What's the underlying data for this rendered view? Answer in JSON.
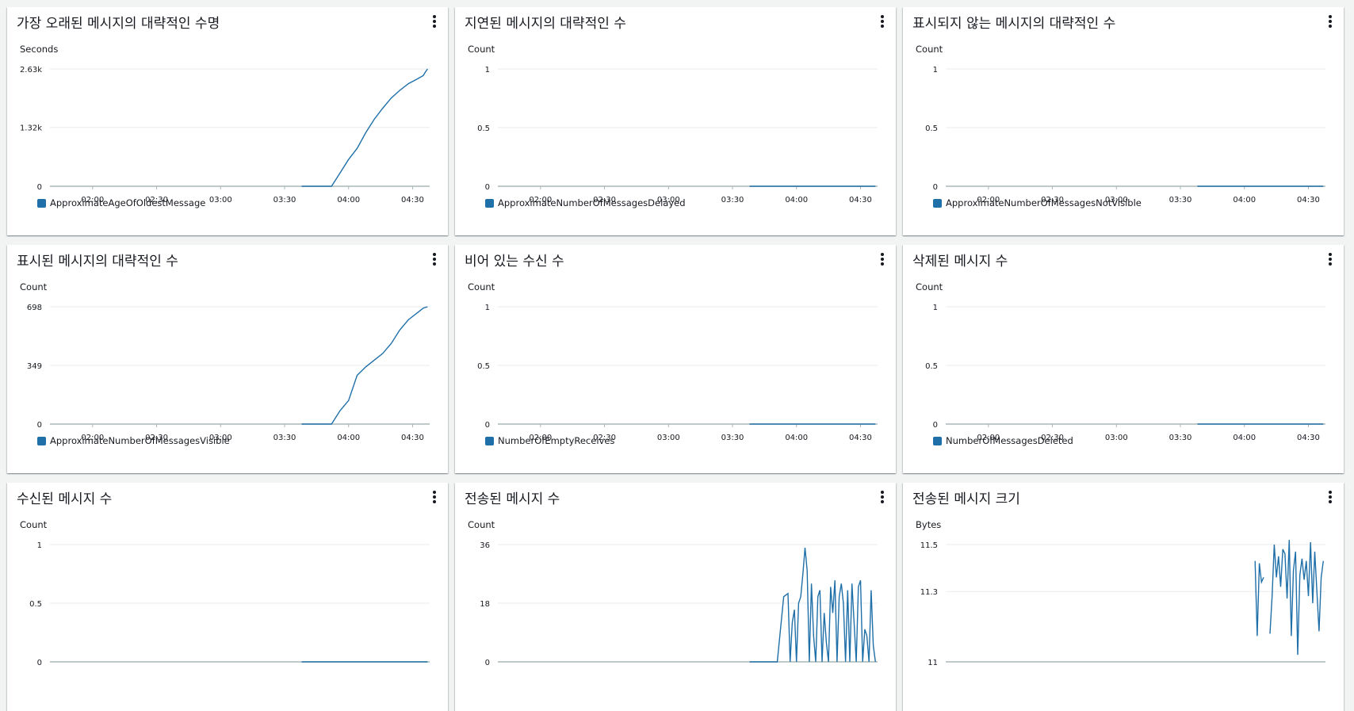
{
  "theme": {
    "series_color": "#1f6fa8",
    "grid_color": "#e9ebed",
    "axis_color": "#aab7b8"
  },
  "panels": [
    {
      "title": "가장 오래된 메시지의 대략적인 수명",
      "unit": "Seconds",
      "legend": "ApproximateAgeOfOldestMessage",
      "menu_icon": "more-vertical-icon"
    },
    {
      "title": "지연된 메시지의 대략적인 수",
      "unit": "Count",
      "legend": "ApproximateNumberOfMessagesDelayed",
      "menu_icon": "more-vertical-icon"
    },
    {
      "title": "표시되지 않는 메시지의 대략적인 수",
      "unit": "Count",
      "legend": "ApproximateNumberOfMessagesNotVisible",
      "menu_icon": "more-vertical-icon"
    },
    {
      "title": "표시된 메시지의 대략적인 수",
      "unit": "Count",
      "legend": "ApproximateNumberOfMessagesVisible",
      "menu_icon": "more-vertical-icon"
    },
    {
      "title": "비어 있는 수신 수",
      "unit": "Count",
      "legend": "NumberOfEmptyReceives",
      "menu_icon": "more-vertical-icon"
    },
    {
      "title": "삭제된 메시지 수",
      "unit": "Count",
      "legend": "NumberOfMessagesDeleted",
      "menu_icon": "more-vertical-icon"
    },
    {
      "title": "수신된 메시지 수",
      "unit": "Count",
      "legend": "",
      "menu_icon": "more-vertical-icon"
    },
    {
      "title": "전송된 메시지 수",
      "unit": "Count",
      "legend": "",
      "menu_icon": "more-vertical-icon"
    },
    {
      "title": "전송된 메시지 크기",
      "unit": "Bytes",
      "legend": "",
      "menu_icon": "more-vertical-icon"
    }
  ],
  "chart_data": [
    {
      "type": "line",
      "title": "가장 오래된 메시지의 대략적인 수명",
      "ylabel": "Seconds",
      "x_ticks": [
        "02:00",
        "02:30",
        "03:00",
        "03:30",
        "04:00",
        "04:30"
      ],
      "y_ticks": [
        "0",
        "1.32k",
        "2.63k"
      ],
      "ylim": [
        0,
        2630
      ],
      "xlim": [
        "01:40",
        "04:38"
      ],
      "series": [
        {
          "name": "ApproximateAgeOfOldestMessage",
          "x": [
            "03:38",
            "03:52",
            "03:56",
            "04:00",
            "04:04",
            "04:08",
            "04:12",
            "04:16",
            "04:20",
            "04:24",
            "04:28",
            "04:32",
            "04:35",
            "04:36",
            "04:37"
          ],
          "y": [
            0,
            0,
            300,
            600,
            850,
            1200,
            1500,
            1750,
            1980,
            2150,
            2300,
            2400,
            2480,
            2560,
            2630
          ]
        }
      ]
    },
    {
      "type": "line",
      "title": "지연된 메시지의 대략적인 수",
      "ylabel": "Count",
      "x_ticks": [
        "02:00",
        "02:30",
        "03:00",
        "03:30",
        "04:00",
        "04:30"
      ],
      "y_ticks": [
        "0",
        "0.5",
        "1"
      ],
      "ylim": [
        0,
        1
      ],
      "xlim": [
        "01:40",
        "04:38"
      ],
      "series": [
        {
          "name": "ApproximateNumberOfMessagesDelayed",
          "x": [
            "03:38",
            "04:37"
          ],
          "y": [
            0,
            0
          ]
        }
      ]
    },
    {
      "type": "line",
      "title": "표시되지 않는 메시지의 대략적인 수",
      "ylabel": "Count",
      "x_ticks": [
        "02:00",
        "02:30",
        "03:00",
        "03:30",
        "04:00",
        "04:30"
      ],
      "y_ticks": [
        "0",
        "0.5",
        "1"
      ],
      "ylim": [
        0,
        1
      ],
      "xlim": [
        "01:40",
        "04:38"
      ],
      "series": [
        {
          "name": "ApproximateNumberOfMessagesNotVisible",
          "x": [
            "03:38",
            "04:37"
          ],
          "y": [
            0,
            0
          ]
        }
      ]
    },
    {
      "type": "line",
      "title": "표시된 메시지의 대략적인 수",
      "ylabel": "Count",
      "x_ticks": [
        "02:00",
        "02:30",
        "03:00",
        "03:30",
        "04:00",
        "04:30"
      ],
      "y_ticks": [
        "0",
        "349",
        "698"
      ],
      "ylim": [
        0,
        698
      ],
      "xlim": [
        "01:40",
        "04:38"
      ],
      "series": [
        {
          "name": "ApproximateNumberOfMessagesVisible",
          "x": [
            "03:38",
            "03:52",
            "03:56",
            "04:00",
            "04:04",
            "04:08",
            "04:12",
            "04:16",
            "04:20",
            "04:24",
            "04:28",
            "04:32",
            "04:35",
            "04:37"
          ],
          "y": [
            0,
            0,
            80,
            140,
            290,
            340,
            380,
            420,
            480,
            560,
            620,
            660,
            690,
            698
          ]
        }
      ]
    },
    {
      "type": "line",
      "title": "비어 있는 수신 수",
      "ylabel": "Count",
      "x_ticks": [
        "02:00",
        "02:30",
        "03:00",
        "03:30",
        "04:00",
        "04:30"
      ],
      "y_ticks": [
        "0",
        "0.5",
        "1"
      ],
      "ylim": [
        0,
        1
      ],
      "xlim": [
        "01:40",
        "04:38"
      ],
      "series": [
        {
          "name": "NumberOfEmptyReceives",
          "x": [
            "03:38",
            "04:37"
          ],
          "y": [
            0,
            0
          ]
        }
      ]
    },
    {
      "type": "line",
      "title": "삭제된 메시지 수",
      "ylabel": "Count",
      "x_ticks": [
        "02:00",
        "02:30",
        "03:00",
        "03:30",
        "04:00",
        "04:30"
      ],
      "y_ticks": [
        "0",
        "0.5",
        "1"
      ],
      "ylim": [
        0,
        1
      ],
      "xlim": [
        "01:40",
        "04:38"
      ],
      "series": [
        {
          "name": "NumberOfMessagesDeleted",
          "x": [
            "03:38",
            "04:37"
          ],
          "y": [
            0,
            0
          ]
        }
      ]
    },
    {
      "type": "line",
      "title": "수신된 메시지 수",
      "ylabel": "Count",
      "x_ticks": [],
      "y_ticks": [
        "0",
        "0.5",
        "1"
      ],
      "ylim": [
        0,
        1
      ],
      "xlim": [
        "01:40",
        "04:38"
      ],
      "series": [
        {
          "x": [
            "03:38",
            "04:37"
          ],
          "y": [
            0,
            0
          ]
        }
      ]
    },
    {
      "type": "line",
      "title": "전송된 메시지 수",
      "ylabel": "Count",
      "x_ticks": [],
      "y_ticks": [
        "0",
        "18",
        "36"
      ],
      "ylim": [
        0,
        36
      ],
      "xlim": [
        "01:40",
        "04:38"
      ],
      "series": [
        {
          "x": [
            "03:38",
            "03:51",
            "03:54",
            "03:56",
            "03:57",
            "03:58",
            "03:59",
            "04:00",
            "04:01",
            "04:02",
            "04:03",
            "04:04",
            "04:05",
            "04:06",
            "04:07",
            "04:08",
            "04:09",
            "04:10",
            "04:11",
            "04:12",
            "04:13",
            "04:14",
            "04:15",
            "04:16",
            "04:17",
            "04:18",
            "04:19",
            "04:20",
            "04:21",
            "04:22",
            "04:23",
            "04:24",
            "04:25",
            "04:26",
            "04:27",
            "04:28",
            "04:29",
            "04:30",
            "04:31",
            "04:32",
            "04:33",
            "04:34",
            "04:35",
            "04:36",
            "04:37"
          ],
          "y": [
            0,
            0,
            20,
            21,
            0,
            12,
            16,
            0,
            18,
            20,
            27,
            35,
            28,
            0,
            24,
            8,
            0,
            20,
            22,
            0,
            15,
            6,
            0,
            23,
            15,
            25,
            0,
            20,
            24,
            18,
            0,
            22,
            0,
            24,
            12,
            0,
            23,
            25,
            0,
            10,
            8,
            0,
            22,
            5,
            0
          ]
        }
      ]
    },
    {
      "type": "line",
      "title": "전송된 메시지 크기",
      "ylabel": "Bytes",
      "x_ticks": [],
      "y_ticks": [
        "11",
        "11.3",
        "11.5"
      ],
      "ylim": [
        11,
        11.5
      ],
      "xlim": [
        "01:40",
        "04:38"
      ],
      "series": [
        {
          "x": [
            "04:05",
            "04:06",
            "04:07",
            "04:08",
            "04:09",
            "04:10",
            "04:11",
            "04:12",
            "04:13",
            "04:14",
            "04:15",
            "04:16",
            "04:17",
            "04:18",
            "04:19",
            "04:20",
            "04:21",
            "04:22",
            "04:23",
            "04:24",
            "04:25",
            "04:26",
            "04:27",
            "04:28",
            "04:29",
            "04:30",
            "04:31",
            "04:32",
            "04:33",
            "04:34",
            "04:35",
            "04:36",
            "04:37"
          ],
          "y": [
            11.43,
            11.11,
            11.42,
            11.34,
            11.36,
            null,
            null,
            11.12,
            11.28,
            11.5,
            11.36,
            11.45,
            11.32,
            11.48,
            11.46,
            11.27,
            11.52,
            11.11,
            11.39,
            11.47,
            11.03,
            11.37,
            11.44,
            11.35,
            11.43,
            11.28,
            11.51,
            11.25,
            11.47,
            11.3,
            11.13,
            11.36,
            11.43
          ]
        }
      ]
    }
  ]
}
